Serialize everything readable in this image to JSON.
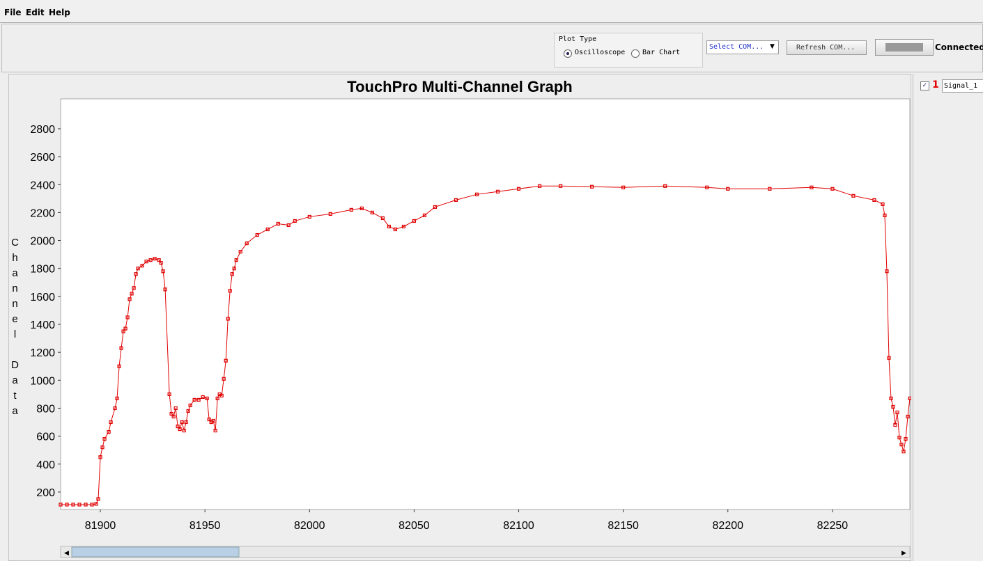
{
  "menu": [
    "File",
    "Edit",
    "Help"
  ],
  "toolbar": {
    "plot_type_label": "Plot Type",
    "options": [
      "Oscilloscope",
      "Bar Chart"
    ],
    "com_select": "Select COM...",
    "refresh_button": "Refresh COM...",
    "status": "Connected"
  },
  "channels": [
    {
      "number": "1",
      "name": "Signal_1"
    }
  ],
  "chart_data": {
    "type": "line",
    "title": "TouchPro Multi-Channel Graph",
    "ylabel": "Channel Data",
    "x": [
      81881,
      81884,
      81887,
      81890,
      81893,
      81896,
      81898,
      81899,
      81900,
      81901,
      81902,
      81904,
      81905,
      81907,
      81908,
      81909,
      81910,
      81911,
      81912,
      81913,
      81914,
      81915,
      81916,
      81917,
      81918,
      81920,
      81922,
      81924,
      81926,
      81928,
      81929,
      81930,
      81931,
      81933,
      81934,
      81935,
      81936,
      81937,
      81938,
      81939,
      81940,
      81941,
      81942,
      81943,
      81945,
      81947,
      81949,
      81951,
      81952,
      81953,
      81954,
      81955,
      81956,
      81957,
      81958,
      81959,
      81960,
      81961,
      81962,
      81963,
      81964,
      81965,
      81967,
      81970,
      81975,
      81980,
      81985,
      81990,
      81993,
      82000,
      82010,
      82020,
      82025,
      82030,
      82035,
      82038,
      82041,
      82045,
      82050,
      82055,
      82060,
      82070,
      82080,
      82090,
      82100,
      82110,
      82120,
      82135,
      82150,
      82170,
      82190,
      82200,
      82220,
      82240,
      82250,
      82260,
      82270,
      82274,
      82275,
      82276,
      82277,
      82278,
      82279,
      82280,
      82281,
      82282,
      82283,
      82284,
      82285,
      82286,
      82287
    ],
    "series": [
      {
        "color": "#e00000",
        "values": [
          110,
          110,
          110,
          110,
          110,
          110,
          115,
          150,
          450,
          520,
          580,
          630,
          700,
          800,
          870,
          1100,
          1230,
          1350,
          1370,
          1450,
          1580,
          1620,
          1660,
          1760,
          1800,
          1820,
          1850,
          1860,
          1870,
          1860,
          1840,
          1780,
          1650,
          900,
          760,
          740,
          800,
          670,
          650,
          700,
          640,
          700,
          780,
          820,
          860,
          860,
          880,
          870,
          720,
          700,
          710,
          640,
          870,
          900,
          890,
          1010,
          1140,
          1440,
          1640,
          1760,
          1800,
          1860,
          1920,
          1980,
          2040,
          2080,
          2120,
          2110,
          2140,
          2170,
          2190,
          2220,
          2230,
          2200,
          2160,
          2100,
          2080,
          2100,
          2140,
          2180,
          2240,
          2290,
          2330,
          2350,
          2370,
          2390,
          2390,
          2385,
          2380,
          2390,
          2380,
          2370,
          2370,
          2380,
          2370,
          2320,
          2290,
          2260,
          2180,
          1780,
          1160,
          870,
          810,
          680,
          770,
          590,
          540,
          490,
          580,
          740,
          870
        ]
      }
    ],
    "xlim": [
      81881,
      82287
    ],
    "ylim": [
      75,
      3014
    ],
    "xticks": [
      81900,
      81950,
      82000,
      82050,
      82100,
      82150,
      82200,
      82250
    ],
    "yticks": [
      200,
      400,
      600,
      800,
      1000,
      1200,
      1400,
      1600,
      1800,
      2000,
      2200,
      2400,
      2600,
      2800
    ]
  }
}
